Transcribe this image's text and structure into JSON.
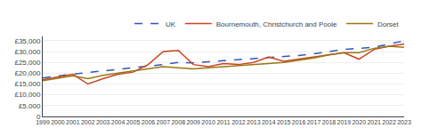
{
  "chart_data": {
    "type": "line",
    "x": [
      1999,
      2000,
      2001,
      2002,
      2003,
      2004,
      2005,
      2006,
      2007,
      2008,
      2009,
      2010,
      2011,
      2012,
      2013,
      2014,
      2015,
      2016,
      2017,
      2018,
      2019,
      2020,
      2021,
      2022,
      2023
    ],
    "series": [
      {
        "name": "UK",
        "color": "#3355bb",
        "line_style": "dashed",
        "values": [
          17800,
          18800,
          19600,
          20300,
          21000,
          21800,
          22500,
          23200,
          24000,
          25000,
          24800,
          25300,
          25800,
          26100,
          26500,
          27000,
          27500,
          28200,
          29000,
          30000,
          31000,
          31500,
          32000,
          33500,
          35000
        ]
      },
      {
        "name": "Bournemouth, Christchurch and Poole",
        "color": "#cc4422",
        "line_style": "solid",
        "values": [
          17000,
          18200,
          19500,
          15000,
          17500,
          19500,
          20500,
          24000,
          30000,
          30500,
          24000,
          23000,
          24500,
          24000,
          25000,
          27500,
          25500,
          26500,
          27500,
          28500,
          29500,
          26500,
          31000,
          32500,
          33500
        ]
      },
      {
        "name": "Dorset",
        "color": "#997711",
        "line_style": "solid",
        "values": [
          16500,
          17500,
          18800,
          17500,
          19000,
          20000,
          21000,
          22000,
          23000,
          22500,
          22000,
          22500,
          23000,
          23500,
          24000,
          24500,
          25000,
          26000,
          27000,
          28500,
          29500,
          29500,
          31500,
          32500,
          32000
        ]
      }
    ],
    "xlim": [
      1999,
      2023
    ],
    "xticks": [
      1999,
      2000,
      2001,
      2002,
      2003,
      2004,
      2005,
      2006,
      2007,
      2008,
      2009,
      2010,
      2011,
      2012,
      2013,
      2014,
      2015,
      2016,
      2017,
      2018,
      2019,
      2020,
      2021,
      2022,
      2023
    ],
    "ylim": [
      0,
      37000
    ],
    "yticks": [
      0,
      {
        "value": 5000,
        "label": "£5,000"
      },
      {
        "value": 10000,
        "label": "£10,000"
      },
      {
        "value": 15000,
        "label": "£15,000"
      },
      {
        "value": 20000,
        "label": "£20,000"
      },
      {
        "value": 25000,
        "label": "£25,000"
      },
      {
        "value": 30000,
        "label": "£30,000"
      },
      {
        "value": 35000,
        "label": "£35,000"
      }
    ],
    "grid": "y",
    "legend": "top"
  }
}
